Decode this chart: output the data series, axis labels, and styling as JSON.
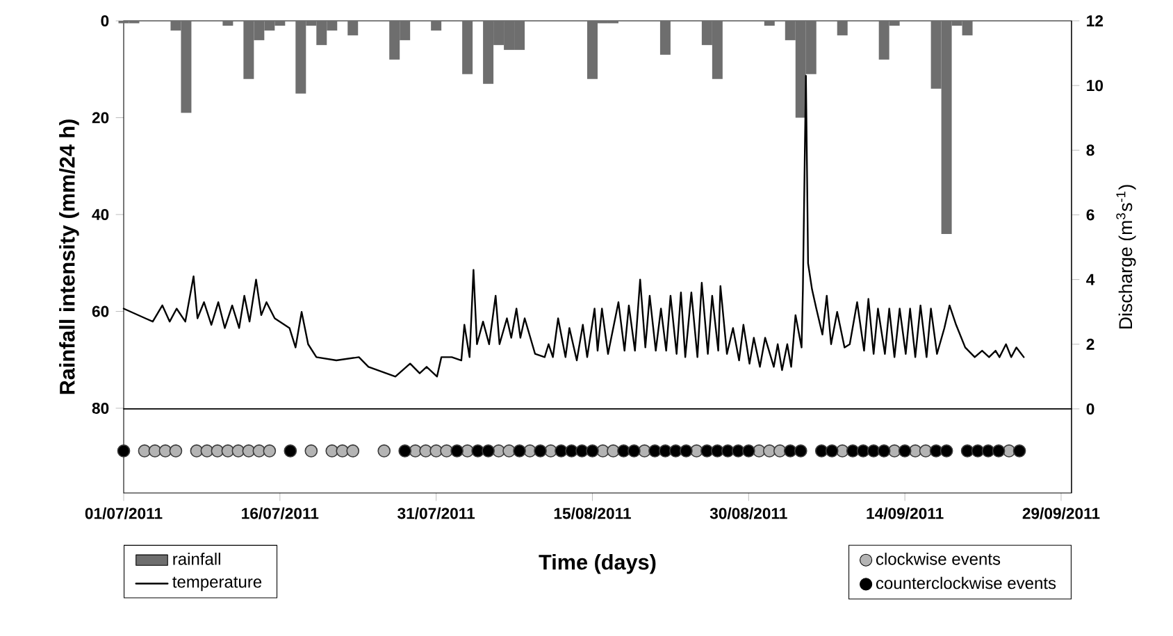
{
  "chart_data": {
    "type": "bar",
    "xlabel": "Time (days)",
    "ylabel": "Rainfall intensity (mm/24 h)",
    "y2label": "Discharge (m$^{3}$s$^{-1}$)",
    "xlim": [
      "2011-07-01",
      "2011-09-30"
    ],
    "xticks": [
      {
        "value": "2011-07-01",
        "label": "01/07/2011"
      },
      {
        "value": "2011-07-16",
        "label": "16/07/2011"
      },
      {
        "value": "2011-07-31",
        "label": "31/07/2011"
      },
      {
        "value": "2011-08-15",
        "label": "15/08/2011"
      },
      {
        "value": "2011-08-30",
        "label": "30/08/2011"
      },
      {
        "value": "2011-09-14",
        "label": "14/09/2011"
      },
      {
        "value": "2011-09-29",
        "label": "29/09/2011"
      }
    ],
    "ylim": [
      97.5,
      0
    ],
    "yticks": [
      0,
      20,
      40,
      60,
      80
    ],
    "y2lim": [
      -2.6,
      12
    ],
    "y2ticks": [
      0,
      2,
      4,
      6,
      8,
      10,
      12
    ],
    "legend": "bottom",
    "ref_lines": [
      {
        "axis": "y2",
        "value": 0,
        "color": "#000000"
      }
    ],
    "series": [
      {
        "name": "rainfall",
        "color": "#6e6e6e",
        "x": [
          "2011-07-01",
          "2011-07-02",
          "2011-07-06",
          "2011-07-07",
          "2011-07-11",
          "2011-07-13",
          "2011-07-14",
          "2011-07-15",
          "2011-07-16",
          "2011-07-18",
          "2011-07-19",
          "2011-07-20",
          "2011-07-21",
          "2011-07-23",
          "2011-07-27",
          "2011-07-28",
          "2011-07-31",
          "2011-08-03",
          "2011-08-05",
          "2011-08-06",
          "2011-08-07",
          "2011-08-08",
          "2011-08-15",
          "2011-08-16",
          "2011-08-17",
          "2011-08-22",
          "2011-08-26",
          "2011-08-27",
          "2011-09-01",
          "2011-09-03",
          "2011-09-04",
          "2011-09-05",
          "2011-09-08",
          "2011-09-12",
          "2011-09-13",
          "2011-09-17",
          "2011-09-18",
          "2011-09-19",
          "2011-09-20"
        ],
        "values": [
          0.5,
          0.5,
          2,
          19,
          1,
          12,
          4,
          2,
          1,
          15,
          1,
          5,
          2,
          3,
          8,
          4,
          2,
          11,
          13,
          5,
          6,
          6,
          12,
          0.5,
          0.5,
          7,
          5,
          12,
          1,
          4,
          20,
          11,
          3,
          8,
          1,
          14,
          44,
          1,
          3
        ]
      },
      {
        "name": "temperature",
        "type": "line",
        "axis": "y2",
        "color": "#000000",
        "marker": "none",
        "line_style": "solid",
        "x": [
          "2011-07-01T00:00",
          "2011-07-03T02:00",
          "2011-07-03T19:00",
          "2011-07-04T17:00",
          "2011-07-05T10:00",
          "2011-07-06T02:00",
          "2011-07-06T22:00",
          "2011-07-07T17:00",
          "2011-07-08T02:00",
          "2011-07-08T17:00",
          "2011-07-09T10:00",
          "2011-07-10T02:00",
          "2011-07-10T17:00",
          "2011-07-11T10:00",
          "2011-07-12T02:00",
          "2011-07-12T14:00",
          "2011-07-13T02:00",
          "2011-07-13T17:00",
          "2011-07-14T05:00",
          "2011-07-14T17:00",
          "2011-07-15T12:00",
          "2011-07-16T22:00",
          "2011-07-17T12:00",
          "2011-07-18T02:00",
          "2011-07-18T17:00",
          "2011-07-19T12:00",
          "2011-07-21T10:00",
          "2011-07-23T14:00",
          "2011-07-24T12:00",
          "2011-07-27T02:00",
          "2011-07-28T12:00",
          "2011-07-29T10:00",
          "2011-07-30T02:00",
          "2011-07-31T02:00",
          "2011-07-31T12:00",
          "2011-08-01T12:00",
          "2011-08-02T10:00",
          "2011-08-02T17:00",
          "2011-08-03T05:00",
          "2011-08-03T14:00",
          "2011-08-03T22:00",
          "2011-08-04T12:00",
          "2011-08-05T02:00",
          "2011-08-05T17:00",
          "2011-08-06T02:00",
          "2011-08-06T19:00",
          "2011-08-07T05:00",
          "2011-08-07T17:00",
          "2011-08-08T02:00",
          "2011-08-08T12:00",
          "2011-08-09T12:00",
          "2011-08-10T10:00",
          "2011-08-10T19:00",
          "2011-08-11T05:00",
          "2011-08-11T17:00",
          "2011-08-12T10:00",
          "2011-08-12T19:00",
          "2011-08-13T12:00",
          "2011-08-14T02:00",
          "2011-08-14T12:00",
          "2011-08-15T05:00",
          "2011-08-15T12:00",
          "2011-08-15T22:00",
          "2011-08-16T12:00",
          "2011-08-17T12:00",
          "2011-08-18T02:00",
          "2011-08-18T12:00",
          "2011-08-19T02:00",
          "2011-08-19T14:00",
          "2011-08-20T02:00",
          "2011-08-20T12:00",
          "2011-08-21T02:00",
          "2011-08-21T14:00",
          "2011-08-22T02:00",
          "2011-08-22T12:00",
          "2011-08-23T02:00",
          "2011-08-23T12:00",
          "2011-08-23T22:00",
          "2011-08-24T12:00",
          "2011-08-25T02:00",
          "2011-08-25T12:00",
          "2011-08-26T02:00",
          "2011-08-26T12:00",
          "2011-08-27T02:00",
          "2011-08-27T07:00",
          "2011-08-27T22:00",
          "2011-08-28T12:00",
          "2011-08-29T02:00",
          "2011-08-29T12:00",
          "2011-08-30T02:00",
          "2011-08-30T12:00",
          "2011-08-31T02:00",
          "2011-08-31T14:00",
          "2011-09-01T10:00",
          "2011-09-01T19:00",
          "2011-09-02T05:00",
          "2011-09-02T17:00",
          "2011-09-03T02:00",
          "2011-09-03T12:00",
          "2011-09-04T02:00",
          "2011-09-04T05:00",
          "2011-09-04T12:00",
          "2011-09-04T17:00",
          "2011-09-05T02:00",
          "2011-09-05T12:00",
          "2011-09-06T02:00",
          "2011-09-06T12:00",
          "2011-09-06T22:00",
          "2011-09-07T12:00",
          "2011-09-08T05:00",
          "2011-09-08T17:00",
          "2011-09-09T10:00",
          "2011-09-10T02:00",
          "2011-09-10T12:00",
          "2011-09-11T00:00",
          "2011-09-11T10:00",
          "2011-09-12T02:00",
          "2011-09-12T12:00",
          "2011-09-13T00:00",
          "2011-09-13T12:00",
          "2011-09-14T02:00",
          "2011-09-14T12:00",
          "2011-09-15T00:00",
          "2011-09-15T12:00",
          "2011-09-16T02:00",
          "2011-09-16T12:00",
          "2011-09-17T02:00",
          "2011-09-17T19:00",
          "2011-09-18T07:00",
          "2011-09-18T22:00",
          "2011-09-19T19:00",
          "2011-09-20T17:00",
          "2011-09-21T10:00",
          "2011-09-22T02:00",
          "2011-09-22T17:00",
          "2011-09-23T02:00",
          "2011-09-23T17:00",
          "2011-09-24T05:00",
          "2011-09-24T17:00",
          "2011-09-25T10:00"
        ],
        "values": [
          3.1,
          2.8,
          2.7,
          3.2,
          2.7,
          3.1,
          2.7,
          4.1,
          2.8,
          3.3,
          2.6,
          3.3,
          2.5,
          3.2,
          2.5,
          3.5,
          2.7,
          4.0,
          2.9,
          3.3,
          2.8,
          2.5,
          1.9,
          3.0,
          2.0,
          1.6,
          1.5,
          1.6,
          1.3,
          1.0,
          1.4,
          1.1,
          1.3,
          1.0,
          1.6,
          1.6,
          1.5,
          2.6,
          1.6,
          4.3,
          2.0,
          2.7,
          2.0,
          3.5,
          2.0,
          2.8,
          2.2,
          3.1,
          2.2,
          2.8,
          1.7,
          1.6,
          2.0,
          1.6,
          2.8,
          1.6,
          2.5,
          1.5,
          2.6,
          1.6,
          3.1,
          1.8,
          3.1,
          1.7,
          3.3,
          1.8,
          3.2,
          1.8,
          4.0,
          1.9,
          3.5,
          1.8,
          3.1,
          1.8,
          3.5,
          1.7,
          3.6,
          1.6,
          3.6,
          1.6,
          3.9,
          1.7,
          3.5,
          1.8,
          3.8,
          1.7,
          2.5,
          1.5,
          2.6,
          1.4,
          2.2,
          1.3,
          2.2,
          1.3,
          2.0,
          1.2,
          2.0,
          1.3,
          2.9,
          1.9,
          3.7,
          10.3,
          4.5,
          3.7,
          3.1,
          2.3,
          3.5,
          2.0,
          3.0,
          1.9,
          2.0,
          3.3,
          1.8,
          3.4,
          1.7,
          3.1,
          1.7,
          3.1,
          1.6,
          3.1,
          1.7,
          3.1,
          1.6,
          3.2,
          1.6,
          3.1,
          1.7,
          2.5,
          3.2,
          2.6,
          1.9,
          1.6,
          1.8,
          1.6,
          1.8,
          1.6,
          2.0,
          1.6,
          1.9,
          1.6
        ]
      },
      {
        "name": "clockwise events",
        "type": "scatter",
        "axis": "y2",
        "color": "#b4b4b4",
        "marker": "circle",
        "x": [
          "2011-07-03",
          "2011-07-04",
          "2011-07-05",
          "2011-07-06",
          "2011-07-08",
          "2011-07-09",
          "2011-07-10",
          "2011-07-11",
          "2011-07-12",
          "2011-07-13",
          "2011-07-14",
          "2011-07-15",
          "2011-07-19",
          "2011-07-21",
          "2011-07-22",
          "2011-07-23",
          "2011-07-26",
          "2011-07-29",
          "2011-07-30",
          "2011-07-31",
          "2011-08-01",
          "2011-08-03",
          "2011-08-06",
          "2011-08-07",
          "2011-08-09",
          "2011-08-11",
          "2011-08-16",
          "2011-08-17",
          "2011-08-20",
          "2011-08-25",
          "2011-08-31",
          "2011-09-01",
          "2011-09-02",
          "2011-09-08",
          "2011-09-13",
          "2011-09-15",
          "2011-09-16",
          "2011-09-24"
        ],
        "values": [
          -1.3,
          -1.3,
          -1.3,
          -1.3,
          -1.3,
          -1.3,
          -1.3,
          -1.3,
          -1.3,
          -1.3,
          -1.3,
          -1.3,
          -1.3,
          -1.3,
          -1.3,
          -1.3,
          -1.3,
          -1.3,
          -1.3,
          -1.3,
          -1.3,
          -1.3,
          -1.3,
          -1.3,
          -1.3,
          -1.3,
          -1.3,
          -1.3,
          -1.3,
          -1.3,
          -1.3,
          -1.3,
          -1.3,
          -1.3,
          -1.3,
          -1.3,
          -1.3,
          -1.3
        ]
      },
      {
        "name": "counterclockwise events",
        "type": "scatter",
        "axis": "y2",
        "color": "#000000",
        "marker": "circle",
        "x": [
          "2011-07-01",
          "2011-07-17",
          "2011-07-28",
          "2011-08-02",
          "2011-08-04",
          "2011-08-05",
          "2011-08-08",
          "2011-08-10",
          "2011-08-12",
          "2011-08-13",
          "2011-08-14",
          "2011-08-15",
          "2011-08-18",
          "2011-08-19",
          "2011-08-21",
          "2011-08-22",
          "2011-08-23",
          "2011-08-24",
          "2011-08-26",
          "2011-08-27",
          "2011-08-28",
          "2011-08-29",
          "2011-08-30",
          "2011-09-03",
          "2011-09-04",
          "2011-09-06",
          "2011-09-07",
          "2011-09-09",
          "2011-09-10",
          "2011-09-11",
          "2011-09-12",
          "2011-09-14",
          "2011-09-17",
          "2011-09-18",
          "2011-09-20",
          "2011-09-21",
          "2011-09-22",
          "2011-09-23",
          "2011-09-25"
        ],
        "values": [
          -1.3,
          -1.3,
          -1.3,
          -1.3,
          -1.3,
          -1.3,
          -1.3,
          -1.3,
          -1.3,
          -1.3,
          -1.3,
          -1.3,
          -1.3,
          -1.3,
          -1.3,
          -1.3,
          -1.3,
          -1.3,
          -1.3,
          -1.3,
          -1.3,
          -1.3,
          -1.3,
          -1.3,
          -1.3,
          -1.3,
          -1.3,
          -1.3,
          -1.3,
          -1.3,
          -1.3,
          -1.3,
          -1.3,
          -1.3,
          -1.3,
          -1.3,
          -1.3,
          -1.3,
          -1.3
        ]
      }
    ]
  }
}
